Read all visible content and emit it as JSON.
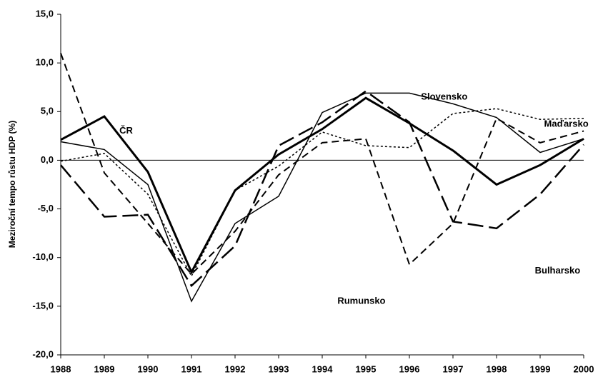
{
  "chart_data": {
    "type": "line",
    "ylabel": "Meziroční tempo růstu HDP (%)",
    "x": [
      1988,
      1989,
      1990,
      1991,
      1992,
      1993,
      1994,
      1995,
      1996,
      1997,
      1998,
      1999,
      2000
    ],
    "xlim": [
      1988,
      2000
    ],
    "xticks": [
      1988,
      1989,
      1990,
      1991,
      1992,
      1993,
      1994,
      1995,
      1996,
      1997,
      1998,
      1999,
      2000
    ],
    "ylim": [
      -20,
      15
    ],
    "yticks": [
      {
        "value": -20,
        "label": "-20,0"
      },
      {
        "value": -15,
        "label": "-15,0"
      },
      {
        "value": -10,
        "label": "-10,0"
      },
      {
        "value": -5,
        "label": "-5,0"
      },
      {
        "value": 0,
        "label": "0,0"
      },
      {
        "value": 5,
        "label": "5,0"
      },
      {
        "value": 10,
        "label": "10,0"
      },
      {
        "value": 15,
        "label": "15,0"
      }
    ],
    "grid": false,
    "series": [
      {
        "name": "ČR",
        "color": "#000000",
        "dash": "solid",
        "width": 3,
        "values": [
          2.1,
          4.5,
          -1.2,
          -11.5,
          -3.1,
          0.6,
          3.2,
          6.4,
          3.8,
          1.0,
          -2.5,
          -0.5,
          2.2
        ]
      },
      {
        "name": "Slovensko",
        "color": "#000000",
        "dash": "solid",
        "width": 1.5,
        "values": [
          1.9,
          1.1,
          -2.5,
          -14.5,
          -6.5,
          -3.7,
          4.9,
          6.9,
          6.9,
          5.8,
          4.4,
          0.8,
          2.2
        ]
      },
      {
        "name": "Maďarsko",
        "color": "#000000",
        "dash": "dotted",
        "width": 1.5,
        "values": [
          -0.1,
          0.7,
          -3.5,
          -11.9,
          -3.1,
          -0.6,
          2.9,
          1.5,
          1.3,
          4.8,
          5.3,
          4.2,
          4.3
        ]
      },
      {
        "name": "Bulharsko",
        "color": "#000000",
        "dash": "dashed",
        "width": 2,
        "values": [
          11.0,
          -1.3,
          -6.5,
          -11.7,
          -7.3,
          -1.5,
          1.8,
          2.2,
          -10.7,
          -6.5,
          4.3,
          1.8,
          3.0
        ]
      },
      {
        "name": "Rumunsko",
        "color": "#000000",
        "dash": "longdash",
        "width": 2.5,
        "values": [
          -0.5,
          -5.8,
          -5.6,
          -12.9,
          -8.8,
          1.5,
          3.9,
          7.1,
          3.9,
          -6.3,
          -7.0,
          -3.5,
          1.6
        ]
      }
    ]
  }
}
